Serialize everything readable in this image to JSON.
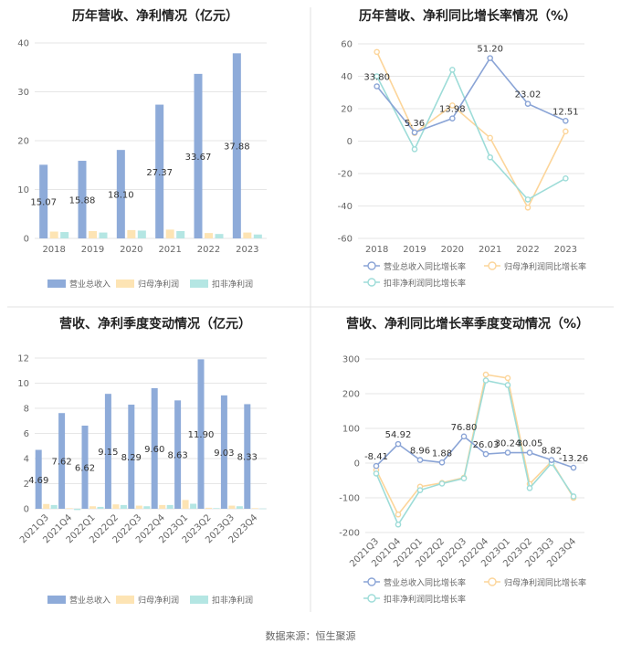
{
  "source": "数据来源：恒生聚源",
  "colors": {
    "revenue": "#8eabd9",
    "netprofit": "#fde4b4",
    "deducted": "#b4e6e3",
    "grid": "#e6e6e6",
    "divider": "#e0e0e0"
  },
  "chart_data": [
    {
      "id": "annual_values",
      "type": "bar",
      "title": "历年营收、净利情况（亿元）",
      "categories": [
        "2018",
        "2019",
        "2020",
        "2021",
        "2022",
        "2023"
      ],
      "series": [
        {
          "name": "营业总收入",
          "values": [
            15.07,
            15.88,
            18.1,
            27.37,
            33.67,
            37.88
          ]
        },
        {
          "name": "归母净利润",
          "values": [
            1.4,
            1.5,
            1.7,
            1.8,
            1.1,
            1.2
          ]
        },
        {
          "name": "扣非净利润",
          "values": [
            1.3,
            1.2,
            1.6,
            1.5,
            0.9,
            0.8
          ]
        }
      ],
      "data_labels": [
        "15.07",
        "15.88",
        "18.10",
        "27.37",
        "33.67",
        "37.88"
      ],
      "ylim": [
        0,
        40
      ],
      "yticks": [
        "0",
        "10",
        "20",
        "30",
        "40"
      ],
      "grid": true,
      "legend": "bottom"
    },
    {
      "id": "annual_growth",
      "type": "line",
      "title": "历年营收、净利同比增长率情况（%）",
      "categories": [
        "2018",
        "2019",
        "2020",
        "2021",
        "2022",
        "2023"
      ],
      "series": [
        {
          "name": "营业总收入同比增长率",
          "values": [
            33.8,
            5.36,
            13.98,
            51.2,
            23.02,
            12.51
          ]
        },
        {
          "name": "归母净利润同比增长率",
          "values": [
            55,
            5,
            22,
            2,
            -41,
            6
          ]
        },
        {
          "name": "扣非净利润同比增长率",
          "values": [
            40,
            -5,
            44,
            -10,
            -36,
            -23
          ]
        }
      ],
      "data_labels": [
        "33.80",
        "5.36",
        "13.98",
        "51.20",
        "23.02",
        "12.51"
      ],
      "ylim": [
        -60,
        60
      ],
      "yticks": [
        "-60",
        "-40",
        "-20",
        "0",
        "20",
        "40",
        "60"
      ],
      "grid": true,
      "legend": "bottom"
    },
    {
      "id": "quarterly_values",
      "type": "bar",
      "title": "营收、净利季度变动情况（亿元）",
      "categories": [
        "2021Q3",
        "2021Q4",
        "2022Q1",
        "2022Q2",
        "2022Q3",
        "2022Q4",
        "2023Q1",
        "2023Q2",
        "2023Q3",
        "2023Q4"
      ],
      "series": [
        {
          "name": "营业总收入",
          "values": [
            4.69,
            7.62,
            6.62,
            9.15,
            8.29,
            9.6,
            8.63,
            11.9,
            9.03,
            8.33
          ]
        },
        {
          "name": "归母净利润",
          "values": [
            0.38,
            0.05,
            0.2,
            0.35,
            0.25,
            0.3,
            0.7,
            0.08,
            0.25,
            0.05
          ]
        },
        {
          "name": "扣非净利润",
          "values": [
            0.3,
            -0.1,
            0.15,
            0.3,
            0.2,
            0.3,
            0.4,
            0.05,
            0.2,
            0.02
          ]
        }
      ],
      "data_labels": [
        "4.69",
        "7.62",
        "6.62",
        "9.15",
        "8.29",
        "9.60",
        "8.63",
        "11.90",
        "9.03",
        "8.33"
      ],
      "ylim": [
        0,
        12
      ],
      "yticks": [
        "0",
        "2",
        "4",
        "6",
        "8",
        "10",
        "12"
      ],
      "grid": true,
      "legend": "bottom"
    },
    {
      "id": "quarterly_growth",
      "type": "line",
      "title": "营收、净利同比增长率季度变动情况（%）",
      "categories": [
        "2021Q3",
        "2021Q4",
        "2022Q1",
        "2022Q2",
        "2022Q3",
        "2022Q4",
        "2023Q1",
        "2023Q2",
        "2023Q3",
        "2023Q4"
      ],
      "series": [
        {
          "name": "营业总收入同比增长率",
          "values": [
            -8.41,
            54.92,
            8.96,
            1.88,
            76.8,
            26.03,
            30.24,
            30.05,
            8.82,
            -13.26
          ]
        },
        {
          "name": "归母净利润同比增长率",
          "values": [
            -20,
            -148,
            -68,
            -57,
            -42,
            255,
            245,
            -60,
            5,
            -100
          ]
        },
        {
          "name": "扣非净利润同比增长率",
          "values": [
            -30,
            -177,
            -78,
            -59,
            -44,
            238,
            225,
            -72,
            0,
            -96
          ]
        }
      ],
      "data_labels": [
        "-8.41",
        "54.92",
        "8.96",
        "1.88",
        "76.80",
        "26.03",
        "30.24",
        "30.05",
        "8.82",
        "-13.26"
      ],
      "ylim": [
        -200,
        300
      ],
      "yticks": [
        "-200",
        "-100",
        "0",
        "100",
        "200",
        "300"
      ],
      "grid": true,
      "legend": "bottom"
    }
  ]
}
